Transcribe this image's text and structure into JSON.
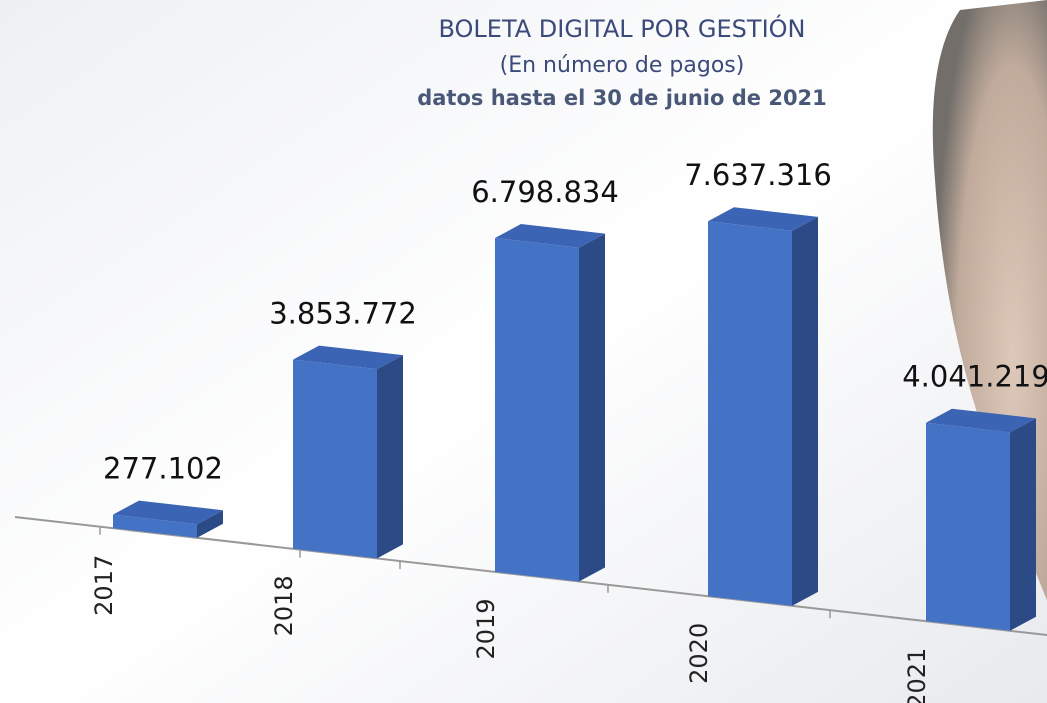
{
  "chart_data": {
    "type": "bar3d",
    "title": "BOLETA DIGITAL POR GESTIÓN",
    "subtitle": "(En número de pagos)",
    "note": "datos hasta el 30 de junio de 2021",
    "categories": [
      "2017",
      "2018",
      "2019",
      "2020",
      "2021"
    ],
    "values": [
      277102,
      3853772,
      6798834,
      7637316,
      4041219
    ],
    "value_labels": [
      "277.102",
      "3.853.772",
      "6.798.834",
      "7.637.316",
      "4.041.219"
    ],
    "color": "#4472c4"
  }
}
